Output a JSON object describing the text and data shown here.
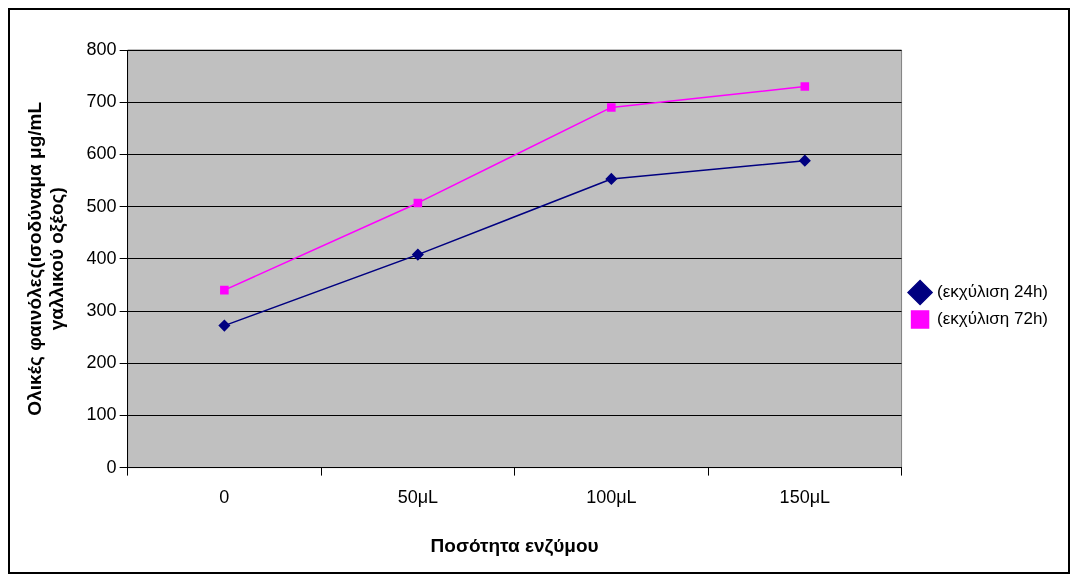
{
  "chart_data": {
    "type": "line",
    "xlabel": "Ποσότητα ενζύμου",
    "ylabel": "Ολικές φαινόλες(ισοδύναμα μg/mL γαλλικού οξέος)",
    "categories": [
      "0",
      "50μL",
      "100μL",
      "150μL"
    ],
    "series": [
      {
        "name": "(εκχύλιση 24h)",
        "color": "#000080",
        "marker": "diamond",
        "values": [
          272,
          408,
          553,
          588
        ]
      },
      {
        "name": "(εκχύλιση 72h)",
        "color": "#ff00ff",
        "marker": "square",
        "values": [
          340,
          507,
          690,
          730
        ]
      }
    ],
    "ylim": [
      0,
      800
    ],
    "yticks": [
      0,
      100,
      200,
      300,
      400,
      500,
      600,
      700,
      800
    ],
    "grid": "y",
    "legend": "right",
    "line_style": "solid"
  }
}
